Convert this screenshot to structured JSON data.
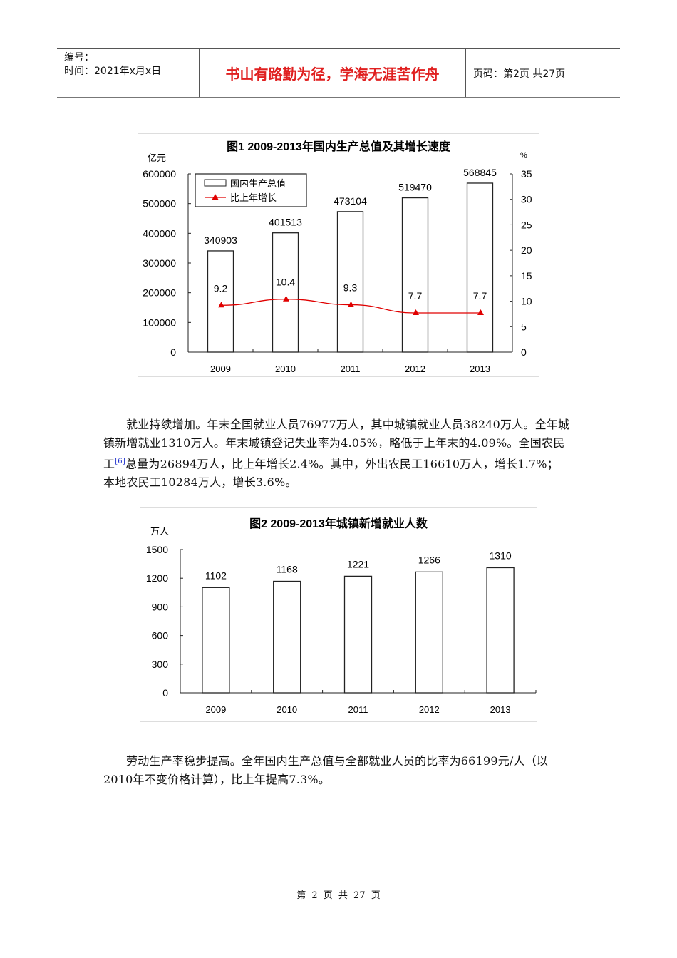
{
  "header": {
    "number_label": "编号：",
    "time_label": "时间：2021年x月x日",
    "motto": "书山有路勤为径，学海无涯苦作舟",
    "page_label": "页码：第2页  共27页"
  },
  "chart_data": [
    {
      "type": "bar+line",
      "title": "图1   2009-2013年国内生产总值及其增长速度",
      "categories": [
        "2009",
        "2010",
        "2011",
        "2012",
        "2013"
      ],
      "series": [
        {
          "name": "国内生产总值",
          "type": "bar",
          "axis": "left",
          "values": [
            340903,
            401513,
            473104,
            519470,
            568845
          ]
        },
        {
          "name": "比上年增长",
          "type": "line",
          "axis": "right",
          "color": "#e00000",
          "values": [
            9.2,
            10.4,
            9.3,
            7.7,
            7.7
          ]
        }
      ],
      "ylabel": "亿元",
      "y2label": "%",
      "ylim": [
        0,
        600000
      ],
      "y2lim": [
        0,
        35
      ],
      "yticks": [
        "0",
        "100000",
        "200000",
        "300000",
        "400000",
        "500000",
        "600000"
      ],
      "y2ticks": [
        "0",
        "5",
        "10",
        "15",
        "20",
        "25",
        "30",
        "35"
      ],
      "legend_position": "top-left",
      "grid": false
    },
    {
      "type": "bar",
      "title": "图2   2009-2013年城镇新增就业人数",
      "categories": [
        "2009",
        "2010",
        "2011",
        "2012",
        "2013"
      ],
      "values": [
        1102,
        1168,
        1221,
        1266,
        1310
      ],
      "ylabel": "万人",
      "ylim": [
        0,
        1500
      ],
      "yticks": [
        "0",
        "300",
        "600",
        "900",
        "1200",
        "1500"
      ],
      "grid": false
    }
  ],
  "paragraphs": {
    "p1_a": "就业持续增加。年末全国就业人员76977万人，其中城镇就业人员38240万人。全年城镇新增就业1310万人。年末城镇登记失业率为4.05%，略低于上年末的4.09%。全国农民工",
    "p1_ref": "[6]",
    "p1_b": "总量为26894万人，比上年增长2.4%。其中，外出农民工16610万人，增长1.7%；本地农民工10284万人，增长3.6%。",
    "p2": "劳动生产率稳步提高。全年国内生产总值与全部就业人员的比率为66199元/人（以2010年不变价格计算），比上年提高7.3%。"
  },
  "footer": {
    "page_text": "第 2 页 共 27 页"
  }
}
